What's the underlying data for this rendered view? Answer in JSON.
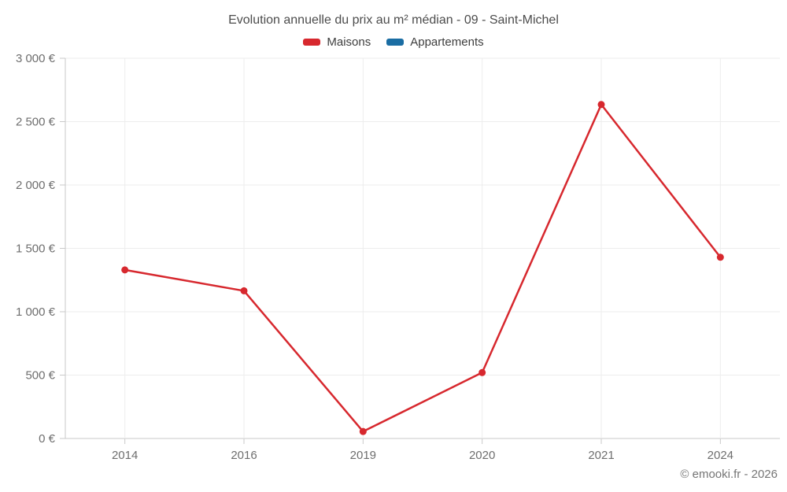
{
  "page": {
    "footer": "© emooki.fr - 2026"
  },
  "chart_data": {
    "type": "line",
    "title": "Evolution annuelle du prix au m² médian - 09 - Saint-Michel",
    "categories": [
      "2014",
      "2016",
      "2019",
      "2020",
      "2021",
      "2024"
    ],
    "series": [
      {
        "name": "Maisons",
        "color": "#d7282e",
        "values": [
          1330,
          1165,
          55,
          520,
          2635,
          1430
        ]
      },
      {
        "name": "Appartements",
        "color": "#1a6da3",
        "values": []
      }
    ],
    "xlabel": "",
    "ylabel": "",
    "ylim": [
      0,
      3000
    ],
    "ytick_step": 500,
    "ytick_labels": [
      "0 €",
      "500 €",
      "1 000 €",
      "1 500 €",
      "2 000 €",
      "2 500 €",
      "3 000 €"
    ],
    "grid": true,
    "legend_position": "top",
    "marker": "circle",
    "currency": "€"
  }
}
